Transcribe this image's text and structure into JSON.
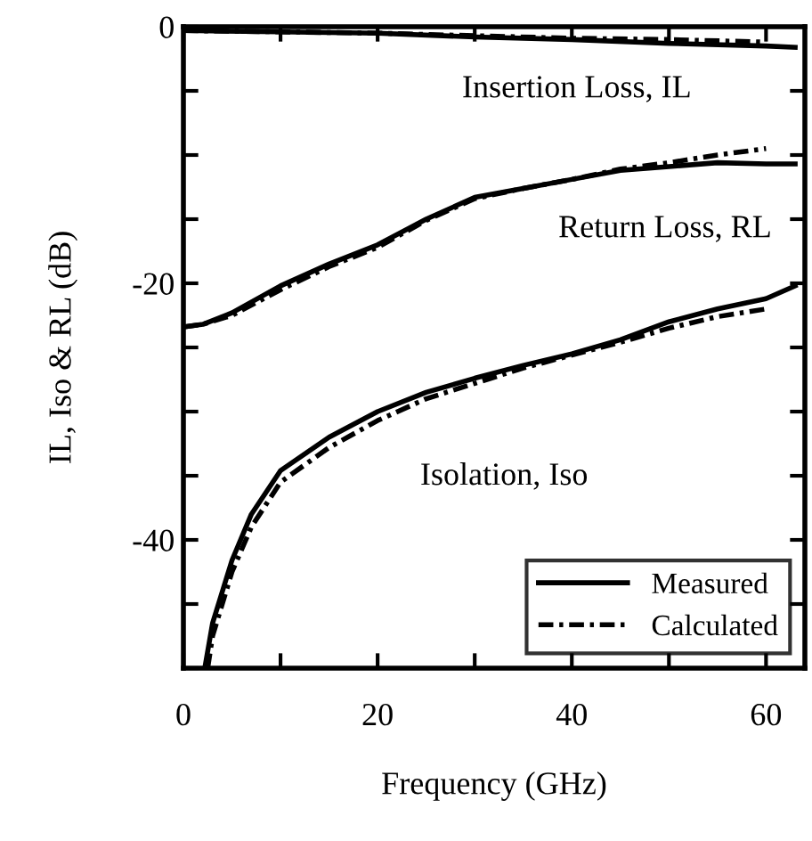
{
  "chart_data": {
    "type": "line",
    "xlabel": "Frequency (GHz)",
    "ylabel": "IL, Iso & RL (dB)",
    "xlim": [
      0,
      64
    ],
    "ylim": [
      -50,
      0
    ],
    "xticks": [
      0,
      {
        "value": 10,
        "label": null
      },
      20,
      {
        "value": 30,
        "label": null
      },
      40,
      {
        "value": 50,
        "label": null
      },
      60
    ],
    "yticks": [
      0,
      {
        "value": -5,
        "label": null
      },
      {
        "value": -10,
        "label": null
      },
      {
        "value": -15,
        "label": null
      },
      -20,
      {
        "value": -25,
        "label": null
      },
      {
        "value": -30,
        "label": null
      },
      {
        "value": -35,
        "label": null
      },
      -40,
      {
        "value": -45,
        "label": null
      },
      {
        "value": -50,
        "label": null
      }
    ],
    "grid": false,
    "legend": "bottom right",
    "marker": "none",
    "series": [
      {
        "name": "Measured",
        "color": "#000000",
        "line_style": "solid",
        "x": [
          0,
          10,
          20,
          30,
          40,
          50,
          60,
          63
        ],
        "values": [
          -0.3,
          -0.4,
          -0.5,
          -0.8,
          -1.0,
          -1.3,
          -1.5,
          -1.6
        ]
      },
      {
        "name": "Calculated",
        "color": "#000000",
        "line_style": "dashdot",
        "x": [
          0,
          10,
          20,
          30,
          40,
          50,
          60
        ],
        "values": [
          -0.3,
          -0.4,
          -0.5,
          -0.7,
          -0.9,
          -1.0,
          -1.2
        ]
      },
      {
        "color": "#000000",
        "line_style": "solid",
        "x": [
          0,
          2,
          5,
          10,
          15,
          20,
          25,
          30,
          35,
          40,
          45,
          50,
          55,
          60,
          63
        ],
        "values": [
          -23.4,
          -23.2,
          -22.3,
          -20.2,
          -18.5,
          -17.0,
          -15.0,
          -13.3,
          -12.6,
          -11.9,
          -11.2,
          -10.9,
          -10.6,
          -10.7,
          -10.7
        ]
      },
      {
        "color": "#000000",
        "line_style": "dashdot",
        "x": [
          0,
          2,
          5,
          10,
          15,
          20,
          25,
          30,
          35,
          40,
          45,
          50,
          55,
          60
        ],
        "values": [
          -23.4,
          -23.2,
          -22.5,
          -20.5,
          -18.7,
          -17.2,
          -15.1,
          -13.4,
          -12.6,
          -11.9,
          -11.1,
          -10.6,
          -10.0,
          -9.5
        ]
      },
      {
        "color": "#000000",
        "line_style": "solid",
        "x": [
          2.2,
          3,
          5,
          7,
          10,
          15,
          20,
          25,
          30,
          35,
          40,
          45,
          50,
          55,
          60,
          63
        ],
        "values": [
          -50,
          -46.5,
          -41.6,
          -38.0,
          -34.6,
          -32.0,
          -30.0,
          -28.5,
          -27.4,
          -26.4,
          -25.5,
          -24.4,
          -23.0,
          -22.0,
          -21.2,
          -20.2
        ]
      },
      {
        "color": "#000000",
        "line_style": "dashdot",
        "x": [
          2.5,
          3,
          5,
          7,
          10,
          15,
          20,
          25,
          30,
          35,
          40,
          45,
          50,
          55,
          60
        ],
        "values": [
          -50,
          -47.5,
          -42.5,
          -39.0,
          -35.5,
          -32.8,
          -30.7,
          -29.0,
          -27.8,
          -26.6,
          -25.6,
          -24.6,
          -23.5,
          -22.6,
          -22.0
        ]
      }
    ],
    "annotations": [
      "Insertion Loss, IL",
      "Return Loss, RL",
      "Isolation, Iso"
    ]
  }
}
